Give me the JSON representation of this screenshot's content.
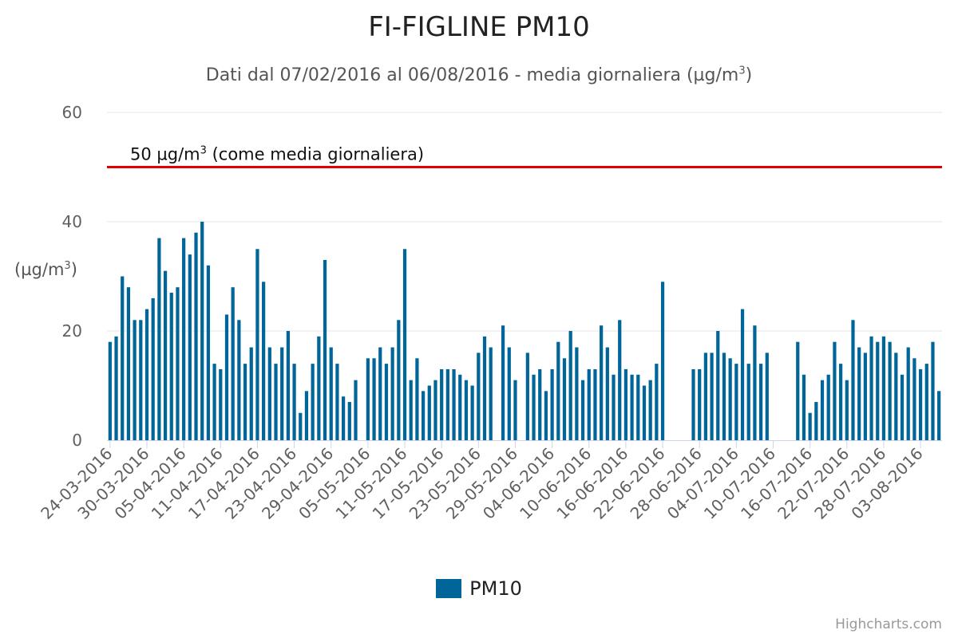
{
  "chart_data": {
    "type": "bar",
    "title": "FI-FIGLINE PM10",
    "subtitle_text": "Dati dal 07/02/2016 al 06/08/2016 - media giornaliera (µg/m",
    "subtitle_sup": "3",
    "subtitle_close": ")",
    "ylabel_text": "(µg/m",
    "ylabel_sup": "3",
    "ylabel_close": ")",
    "ylim": [
      0,
      60
    ],
    "y_ticks": [
      0,
      20,
      40,
      60
    ],
    "grid": true,
    "legend_position": "bottom-center",
    "x_tick_labels": [
      "24-03-2016",
      "30-03-2016",
      "05-04-2016",
      "11-04-2016",
      "17-04-2016",
      "23-04-2016",
      "29-04-2016",
      "05-05-2016",
      "11-05-2016",
      "17-05-2016",
      "23-05-2016",
      "29-05-2016",
      "04-06-2016",
      "10-06-2016",
      "16-06-2016",
      "22-06-2016",
      "28-06-2016",
      "04-07-2016",
      "10-07-2016",
      "16-07-2016",
      "22-07-2016",
      "28-07-2016",
      "03-08-2016"
    ],
    "plot_lines": [
      {
        "value": 50,
        "label_text": "50 µg/m",
        "label_sup": "3",
        "label_rest": " (come media giornaliera)",
        "color": "#e00000"
      }
    ],
    "series": [
      {
        "name": "PM10",
        "color": "#006699",
        "values": [
          18,
          19,
          30,
          28,
          22,
          22,
          24,
          26,
          37,
          31,
          27,
          28,
          37,
          34,
          38,
          40,
          32,
          14,
          13,
          23,
          28,
          22,
          14,
          17,
          35,
          29,
          17,
          14,
          17,
          20,
          14,
          5,
          9,
          14,
          19,
          33,
          17,
          14,
          8,
          7,
          11,
          null,
          15,
          15,
          17,
          14,
          17,
          22,
          35,
          11,
          15,
          9,
          10,
          11,
          13,
          13,
          13,
          12,
          11,
          10,
          16,
          19,
          17,
          null,
          21,
          17,
          11,
          null,
          16,
          12,
          13,
          9,
          13,
          18,
          15,
          20,
          17,
          11,
          13,
          13,
          21,
          17,
          12,
          22,
          13,
          12,
          12,
          10,
          11,
          14,
          29,
          null,
          null,
          null,
          null,
          13,
          13,
          16,
          16,
          20,
          16,
          15,
          14,
          24,
          14,
          21,
          14,
          16,
          null,
          null,
          null,
          null,
          18,
          12,
          5,
          7,
          11,
          12,
          18,
          14,
          11,
          22,
          17,
          16,
          19,
          18,
          19,
          18,
          16,
          12,
          17,
          15,
          13,
          14,
          18,
          9
        ]
      }
    ]
  },
  "credits": "Highcharts.com"
}
